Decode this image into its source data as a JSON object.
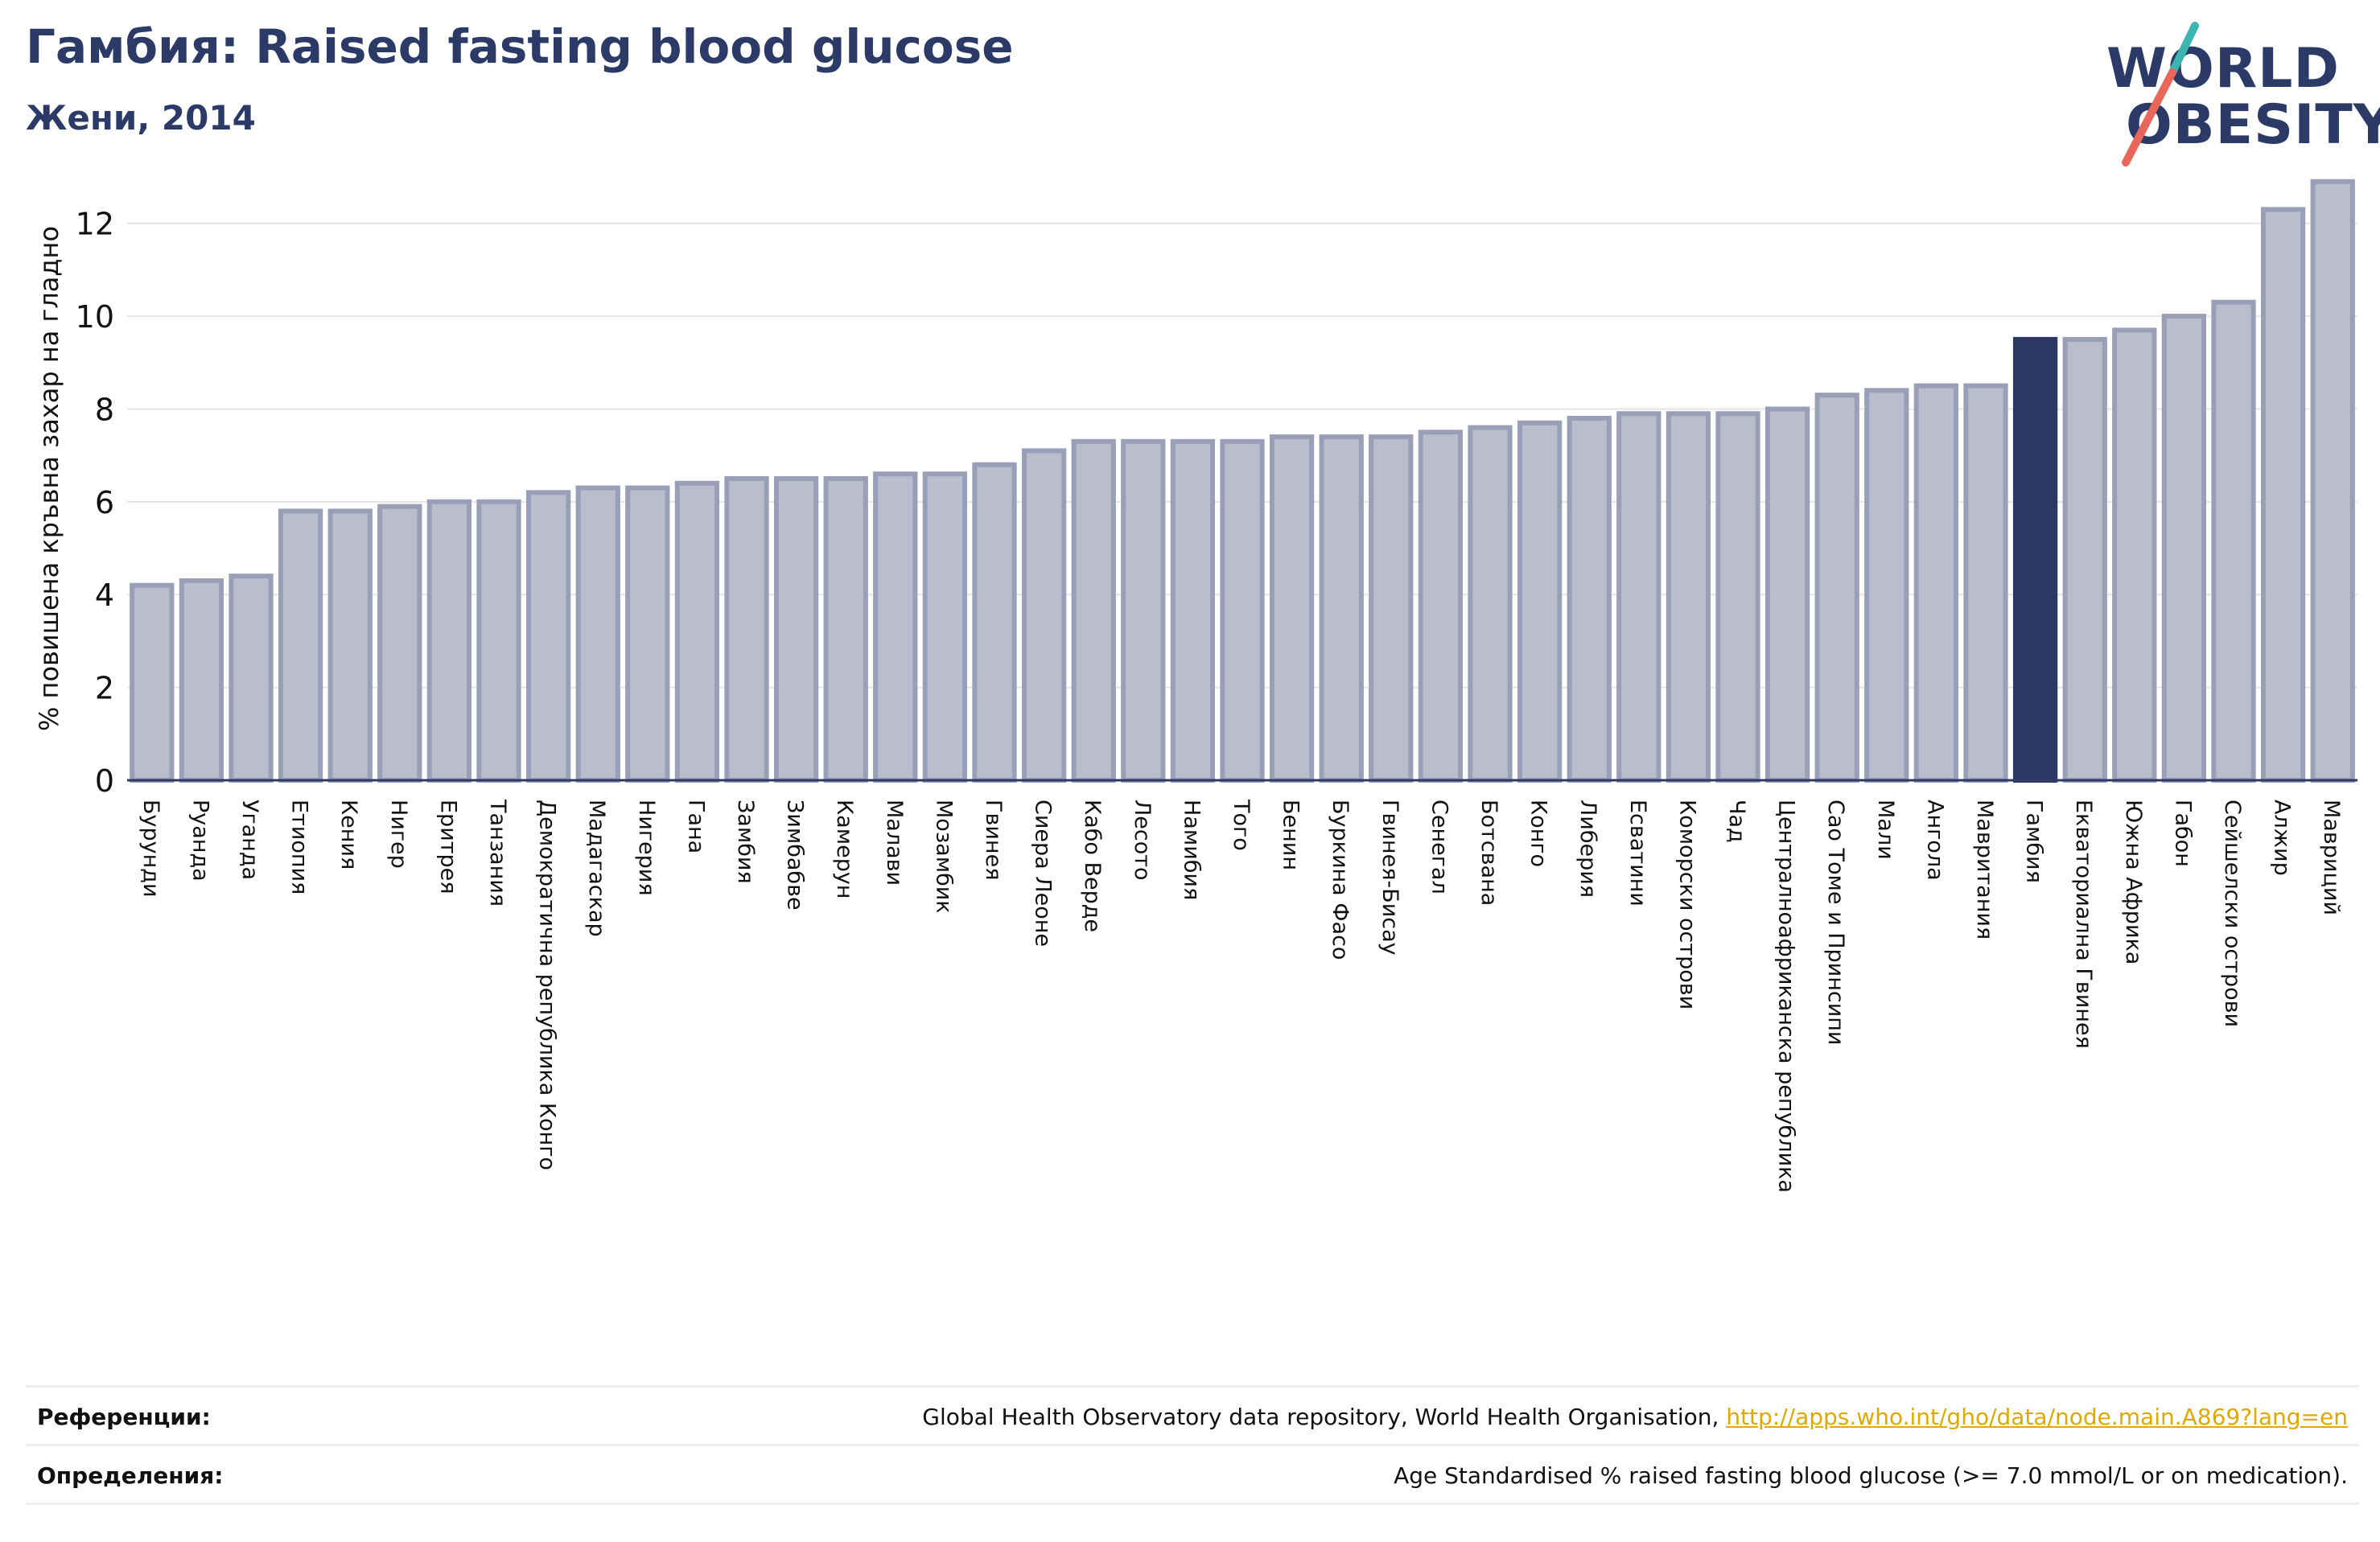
{
  "header": {
    "title": "Гамбия: Raised fasting blood glucose",
    "subtitle": "Жени, 2014"
  },
  "logo": {
    "line1": "WORLD",
    "line2": "OBESITY",
    "colors": {
      "text": "#2b3a67",
      "slash_top": "#3ab5b0",
      "slash_bottom": "#e8675a"
    }
  },
  "chart_data": {
    "type": "bar",
    "ylabel": "% повишена кръвна захар на гладно",
    "ylim": [
      0,
      13
    ],
    "yticks": [
      0,
      2,
      4,
      6,
      8,
      10,
      12
    ],
    "grid": true,
    "highlight": "Гамбия",
    "colors": {
      "bar": "#b9bdcc",
      "bar_edge": "#9a9fb8",
      "highlight": "#2b3862",
      "grid": "#e6e6e6",
      "axis": "#2b3a67"
    },
    "categories": [
      "Бурунди",
      "Руанда",
      "Уганда",
      "Етиопия",
      "Кения",
      "Нигер",
      "Еритрея",
      "Танзания",
      "Демократична република Конго",
      "Мадагаскар",
      "Нигерия",
      "Гана",
      "Замбия",
      "Зимбабве",
      "Камерун",
      "Малави",
      "Мозамбик",
      "Гвинея",
      "Сиера Леоне",
      "Кабо Верде",
      "Лесото",
      "Намибия",
      "Того",
      "Бенин",
      "Буркина Фасо",
      "Гвинея-Бисау",
      "Сенегал",
      "Ботсвана",
      "Конго",
      "Либерия",
      "Есватини",
      "Коморски острови",
      "Чад",
      "Централноафриканска република",
      "Сао Томе и Принсипи",
      "Мали",
      "Ангола",
      "Мавритания",
      "Гамбия",
      "Екваториална Гвинея",
      "Южна Африка",
      "Габон",
      "Сейшелски острови",
      "Алжир",
      "Мавриций"
    ],
    "values": [
      4.2,
      4.3,
      4.4,
      5.8,
      5.8,
      5.9,
      6.0,
      6.0,
      6.2,
      6.3,
      6.3,
      6.4,
      6.5,
      6.5,
      6.5,
      6.6,
      6.6,
      6.8,
      7.1,
      7.3,
      7.3,
      7.3,
      7.3,
      7.4,
      7.4,
      7.4,
      7.5,
      7.6,
      7.7,
      7.8,
      7.9,
      7.9,
      7.9,
      8.0,
      8.3,
      8.4,
      8.5,
      8.5,
      9.5,
      9.5,
      9.7,
      10.0,
      10.3,
      12.3,
      12.9
    ]
  },
  "references": {
    "sources_label": "Референции:",
    "sources_text": "Global Health Observatory data repository, World Health Organisation, ",
    "sources_link": "http://apps.who.int/gho/data/node.main.A869?lang=en",
    "definitions_label": "Определения:",
    "definitions_text": "Age Standardised % raised fasting blood glucose (>= 7.0 mmol/L or on medication)."
  }
}
